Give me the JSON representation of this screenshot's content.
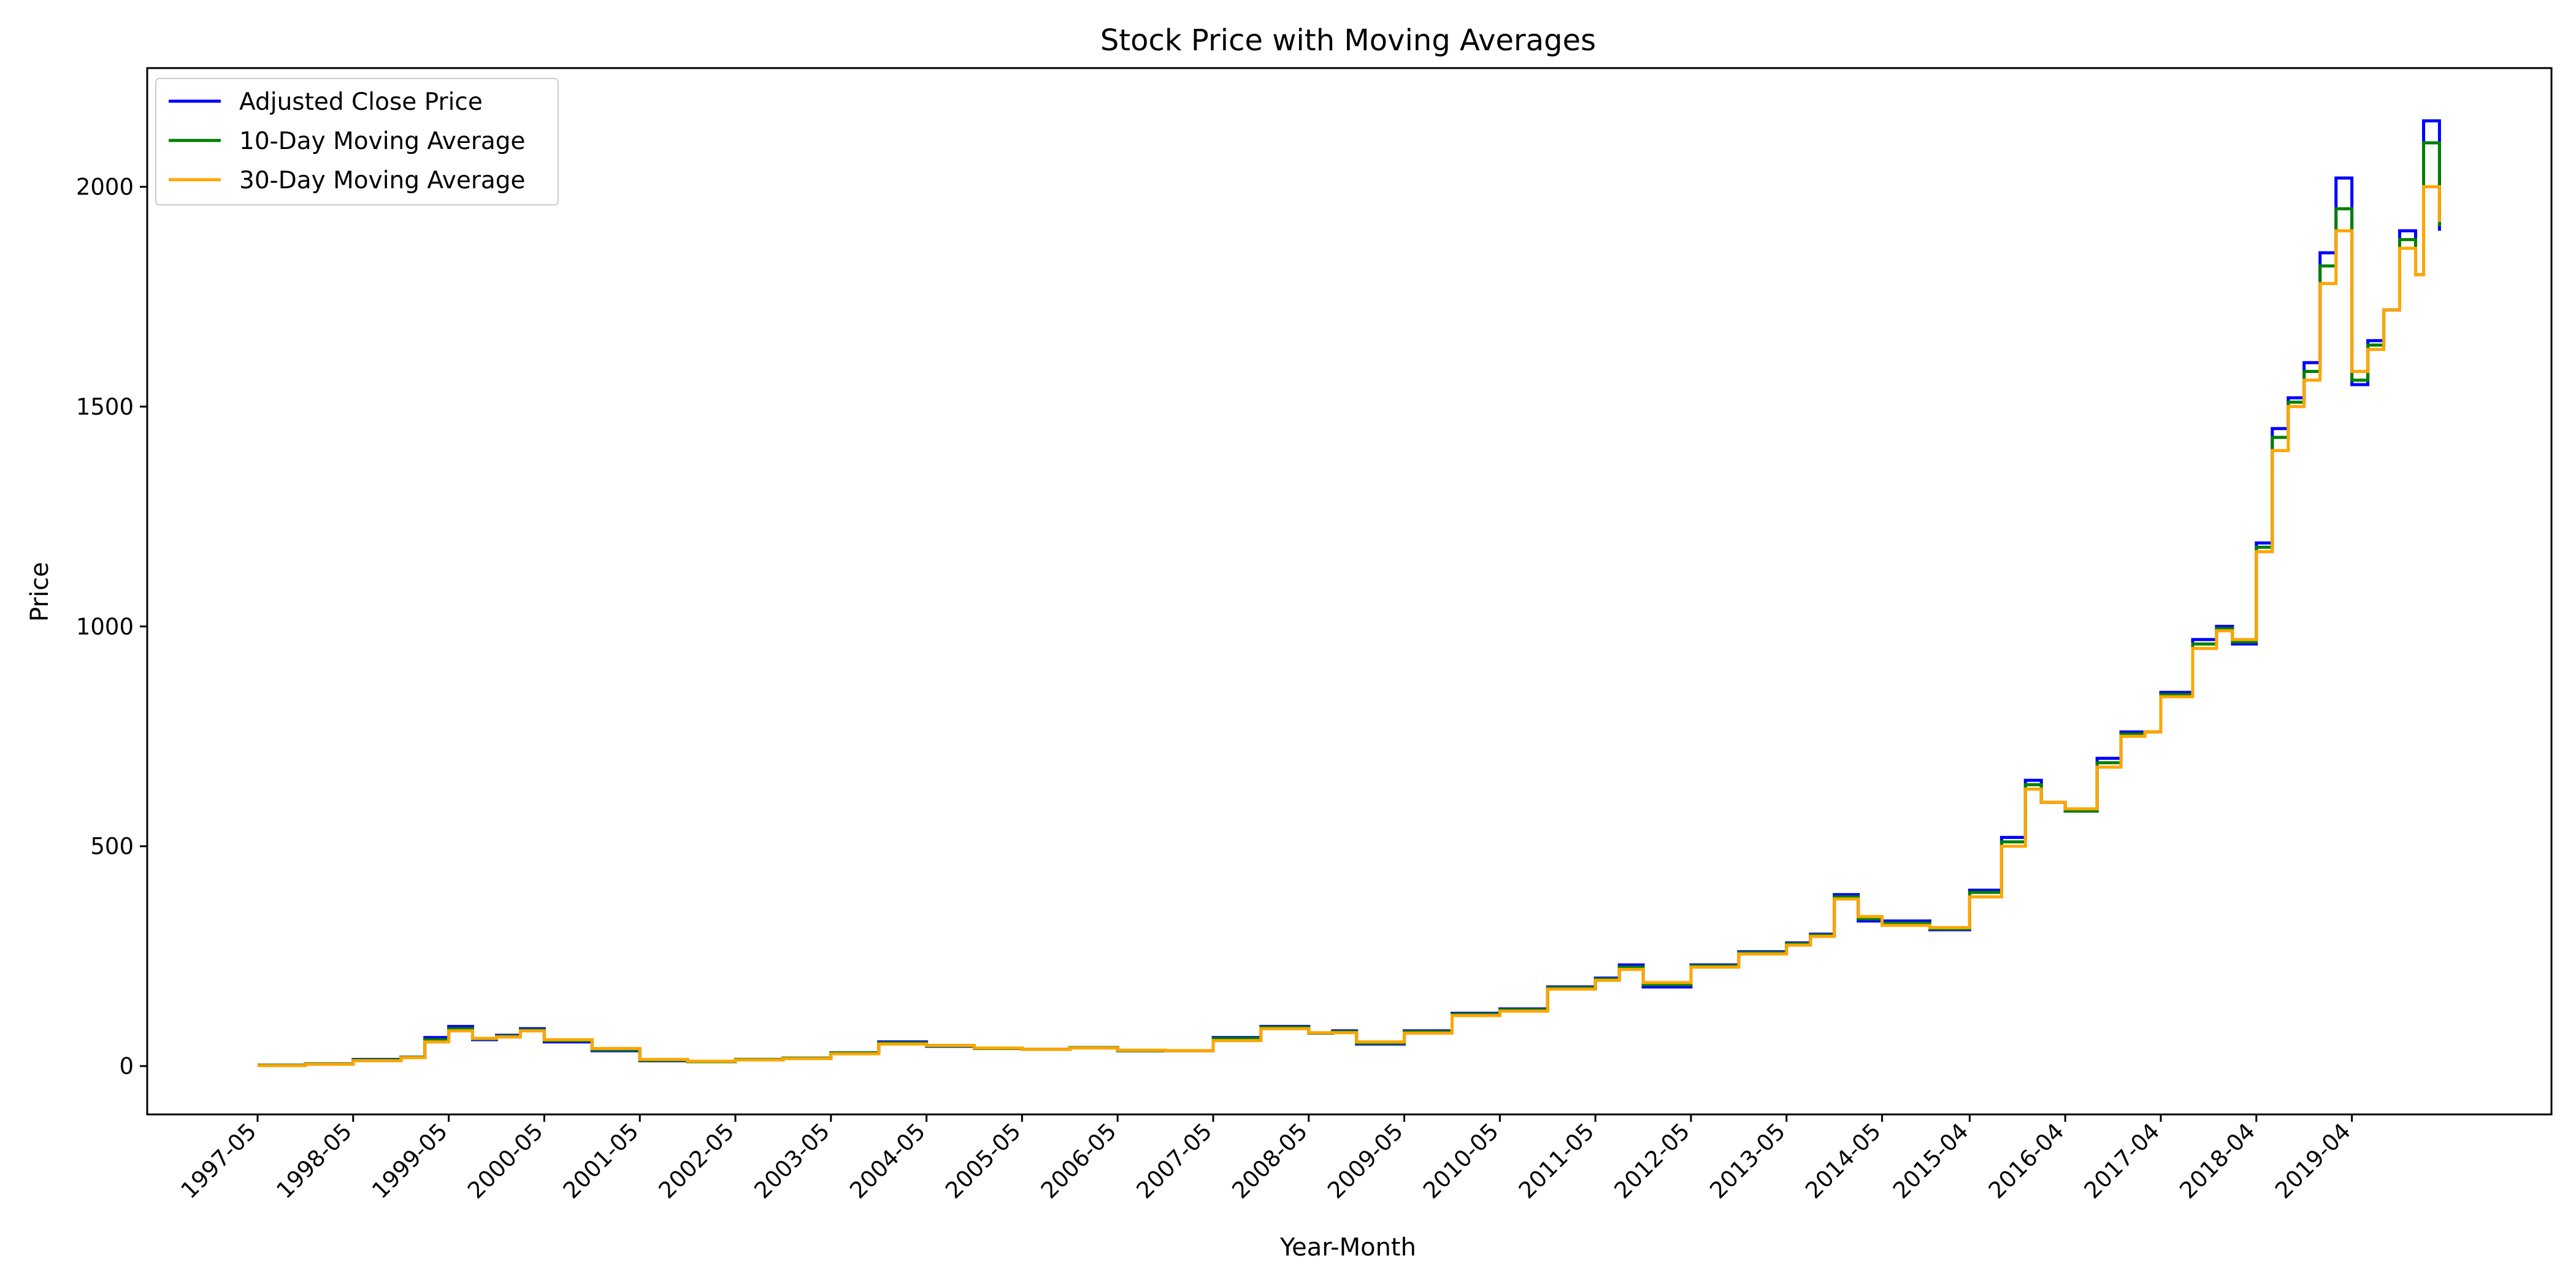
{
  "chart_data": {
    "type": "line",
    "title": "Stock Price with Moving Averages",
    "xlabel": "Year-Month",
    "ylabel": "Price",
    "ylim": [
      -110,
      2270
    ],
    "yticks": [
      0,
      500,
      1000,
      1500,
      2000
    ],
    "xticks": [
      "1997-05",
      "1998-05",
      "1999-05",
      "2000-05",
      "2001-05",
      "2002-05",
      "2003-05",
      "2004-05",
      "2005-05",
      "2006-05",
      "2007-05",
      "2008-05",
      "2009-05",
      "2010-05",
      "2011-05",
      "2012-05",
      "2013-05",
      "2014-05",
      "2015-04",
      "2016-04",
      "2017-04",
      "2018-04",
      "2019-04"
    ],
    "legend_position": "top-left",
    "grid": false,
    "x_start": "1997-05",
    "x_end": "2020-03",
    "series": [
      {
        "name": "Adjusted Close Price",
        "color": "#0000ff",
        "x": [
          "1997-05",
          "1997-11",
          "1998-05",
          "1998-11",
          "1999-02",
          "1999-05",
          "1999-08",
          "1999-11",
          "2000-02",
          "2000-05",
          "2000-11",
          "2001-05",
          "2001-11",
          "2002-05",
          "2002-11",
          "2003-05",
          "2003-11",
          "2004-05",
          "2004-11",
          "2005-05",
          "2005-11",
          "2006-05",
          "2006-11",
          "2007-05",
          "2007-11",
          "2008-05",
          "2008-08",
          "2008-11",
          "2009-05",
          "2009-11",
          "2010-05",
          "2010-11",
          "2011-05",
          "2011-08",
          "2011-11",
          "2012-05",
          "2012-11",
          "2013-05",
          "2013-08",
          "2013-11",
          "2014-02",
          "2014-05",
          "2014-11",
          "2015-04",
          "2015-08",
          "2015-11",
          "2016-01",
          "2016-04",
          "2016-08",
          "2016-11",
          "2017-02",
          "2017-04",
          "2017-08",
          "2017-11",
          "2018-01",
          "2018-04",
          "2018-06",
          "2018-08",
          "2018-10",
          "2018-12",
          "2019-02",
          "2019-04",
          "2019-06",
          "2019-08",
          "2019-10",
          "2019-12",
          "2020-01",
          "2020-03"
        ],
        "values": [
          2,
          5,
          15,
          20,
          65,
          90,
          60,
          70,
          85,
          55,
          35,
          12,
          10,
          15,
          18,
          30,
          55,
          45,
          40,
          38,
          42,
          35,
          35,
          65,
          90,
          75,
          80,
          50,
          80,
          120,
          130,
          180,
          200,
          230,
          180,
          230,
          260,
          280,
          300,
          390,
          330,
          330,
          310,
          400,
          520,
          650,
          600,
          580,
          700,
          760,
          760,
          850,
          970,
          1000,
          960,
          1190,
          1450,
          1520,
          1600,
          1850,
          2020,
          1550,
          1650,
          1720,
          1900,
          1800,
          2150,
          1900
        ]
      },
      {
        "name": "10-Day Moving Average",
        "color": "#008000",
        "x": [
          "1997-05",
          "1997-11",
          "1998-05",
          "1998-11",
          "1999-02",
          "1999-05",
          "1999-08",
          "1999-11",
          "2000-02",
          "2000-05",
          "2000-11",
          "2001-05",
          "2001-11",
          "2002-05",
          "2002-11",
          "2003-05",
          "2003-11",
          "2004-05",
          "2004-11",
          "2005-05",
          "2005-11",
          "2006-05",
          "2006-11",
          "2007-05",
          "2007-11",
          "2008-05",
          "2008-08",
          "2008-11",
          "2009-05",
          "2009-11",
          "2010-05",
          "2010-11",
          "2011-05",
          "2011-08",
          "2011-11",
          "2012-05",
          "2012-11",
          "2013-05",
          "2013-08",
          "2013-11",
          "2014-02",
          "2014-05",
          "2014-11",
          "2015-04",
          "2015-08",
          "2015-11",
          "2016-01",
          "2016-04",
          "2016-08",
          "2016-11",
          "2017-02",
          "2017-04",
          "2017-08",
          "2017-11",
          "2018-01",
          "2018-04",
          "2018-06",
          "2018-08",
          "2018-10",
          "2018-12",
          "2019-02",
          "2019-04",
          "2019-06",
          "2019-08",
          "2019-10",
          "2019-12",
          "2020-01",
          "2020-03"
        ],
        "values": [
          2,
          5,
          14,
          20,
          60,
          85,
          62,
          68,
          82,
          58,
          37,
          13,
          10,
          15,
          18,
          30,
          53,
          46,
          40,
          38,
          42,
          35,
          35,
          63,
          88,
          75,
          78,
          52,
          78,
          118,
          128,
          178,
          198,
          225,
          185,
          228,
          258,
          278,
          298,
          385,
          335,
          325,
          312,
          395,
          510,
          640,
          600,
          580,
          690,
          755,
          760,
          845,
          960,
          995,
          965,
          1180,
          1430,
          1510,
          1580,
          1820,
          1950,
          1560,
          1640,
          1720,
          1880,
          1800,
          2100,
          1910
        ]
      },
      {
        "name": "30-Day Moving Average",
        "color": "#ffa500",
        "x": [
          "1997-05",
          "1997-11",
          "1998-05",
          "1998-11",
          "1999-02",
          "1999-05",
          "1999-08",
          "1999-11",
          "2000-02",
          "2000-05",
          "2000-11",
          "2001-05",
          "2001-11",
          "2002-05",
          "2002-11",
          "2003-05",
          "2003-11",
          "2004-05",
          "2004-11",
          "2005-05",
          "2005-11",
          "2006-05",
          "2006-11",
          "2007-05",
          "2007-11",
          "2008-05",
          "2008-08",
          "2008-11",
          "2009-05",
          "2009-11",
          "2010-05",
          "2010-11",
          "2011-05",
          "2011-08",
          "2011-11",
          "2012-05",
          "2012-11",
          "2013-05",
          "2013-08",
          "2013-11",
          "2014-02",
          "2014-05",
          "2014-11",
          "2015-04",
          "2015-08",
          "2015-11",
          "2016-01",
          "2016-04",
          "2016-08",
          "2016-11",
          "2017-02",
          "2017-04",
          "2017-08",
          "2017-11",
          "2018-01",
          "2018-04",
          "2018-06",
          "2018-08",
          "2018-10",
          "2018-12",
          "2019-02",
          "2019-04",
          "2019-06",
          "2019-08",
          "2019-10",
          "2019-12",
          "2020-01",
          "2020-03"
        ],
        "values": [
          1,
          4,
          12,
          19,
          55,
          80,
          63,
          66,
          80,
          60,
          40,
          15,
          11,
          14,
          17,
          28,
          50,
          47,
          41,
          38,
          41,
          36,
          35,
          58,
          85,
          76,
          76,
          55,
          75,
          115,
          125,
          175,
          195,
          220,
          190,
          225,
          255,
          275,
          295,
          380,
          340,
          320,
          315,
          385,
          500,
          630,
          600,
          585,
          680,
          750,
          760,
          840,
          950,
          990,
          970,
          1170,
          1400,
          1500,
          1560,
          1780,
          1900,
          1580,
          1630,
          1720,
          1860,
          1800,
          2000,
          1920
        ]
      }
    ]
  }
}
